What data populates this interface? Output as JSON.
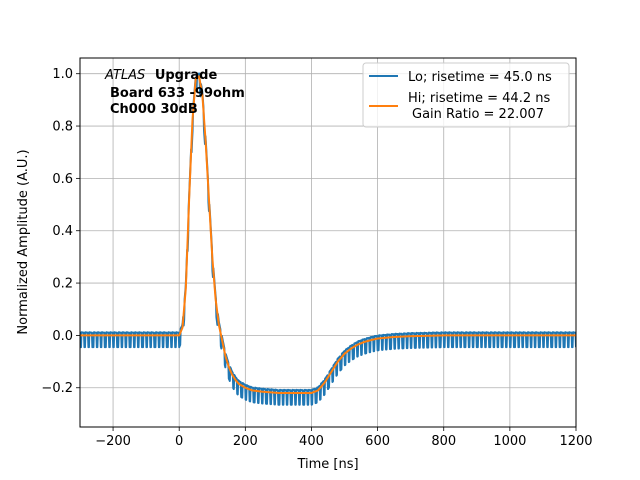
{
  "chart_data": {
    "type": "line",
    "xlabel": "Time [ns]",
    "ylabel": "Normalized Amplitude (A.U.)",
    "xlim": [
      -300,
      1200
    ],
    "ylim": [
      -0.35,
      1.06
    ],
    "xticks": [
      -200,
      0,
      200,
      400,
      600,
      800,
      1000,
      1200
    ],
    "xtick_labels": [
      "−200",
      "0",
      "200",
      "400",
      "600",
      "800",
      "1000",
      "1200"
    ],
    "yticks": [
      -0.2,
      0.0,
      0.2,
      0.4,
      0.6,
      0.8,
      1.0
    ],
    "ytick_labels": [
      "−0.2",
      "0.0",
      "0.2",
      "0.4",
      "0.6",
      "0.8",
      "1.0"
    ],
    "grid": true,
    "legend_position": "top-right",
    "annotation": {
      "atlas": "ATLAS",
      "upgrade": "Upgrade",
      "line2": "Board 633 -99ohm",
      "line3": "Ch000 30dB"
    },
    "series": [
      {
        "name": "Lo; risetime = 45.0 ns",
        "color": "#1f77b4",
        "noise_hi": 0.012,
        "noise_lo": -0.045,
        "noise_period_ns": 12.5,
        "x": [
          -300,
          0,
          10,
          20,
          30,
          40,
          50,
          60,
          70,
          80,
          90,
          100,
          110,
          120,
          130,
          140,
          150,
          160,
          170,
          180,
          200,
          220,
          250,
          300,
          350,
          400,
          420,
          440,
          460,
          480,
          500,
          520,
          540,
          560,
          580,
          600,
          650,
          700,
          800,
          900,
          1000,
          1100,
          1200
        ],
        "y": [
          0.0,
          0.0,
          0.03,
          0.18,
          0.52,
          0.82,
          0.98,
          0.99,
          0.92,
          0.74,
          0.52,
          0.3,
          0.14,
          0.04,
          -0.02,
          -0.08,
          -0.12,
          -0.15,
          -0.17,
          -0.185,
          -0.2,
          -0.21,
          -0.215,
          -0.22,
          -0.22,
          -0.22,
          -0.21,
          -0.18,
          -0.14,
          -0.1,
          -0.07,
          -0.05,
          -0.035,
          -0.025,
          -0.018,
          -0.012,
          -0.006,
          -0.003,
          0.0,
          0.0,
          0.0,
          0.0,
          0.0
        ]
      },
      {
        "name": "Hi; risetime = 44.2 ns",
        "name_line2": "Gain Ratio = 22.007",
        "color": "#ff7f0e",
        "x": [
          -300,
          0,
          10,
          20,
          30,
          40,
          50,
          60,
          70,
          80,
          90,
          100,
          110,
          120,
          130,
          140,
          150,
          160,
          170,
          180,
          200,
          220,
          250,
          300,
          350,
          400,
          420,
          440,
          460,
          480,
          500,
          520,
          540,
          560,
          580,
          600,
          650,
          700,
          800,
          900,
          1000,
          1100,
          1200
        ],
        "y": [
          0.0,
          0.0,
          0.03,
          0.18,
          0.52,
          0.82,
          0.98,
          0.99,
          0.92,
          0.74,
          0.52,
          0.3,
          0.14,
          0.04,
          -0.02,
          -0.08,
          -0.12,
          -0.15,
          -0.17,
          -0.185,
          -0.2,
          -0.21,
          -0.215,
          -0.22,
          -0.22,
          -0.22,
          -0.21,
          -0.18,
          -0.14,
          -0.1,
          -0.07,
          -0.05,
          -0.035,
          -0.025,
          -0.018,
          -0.012,
          -0.006,
          -0.003,
          0.0,
          0.0,
          0.0,
          0.0,
          0.0
        ]
      }
    ]
  }
}
